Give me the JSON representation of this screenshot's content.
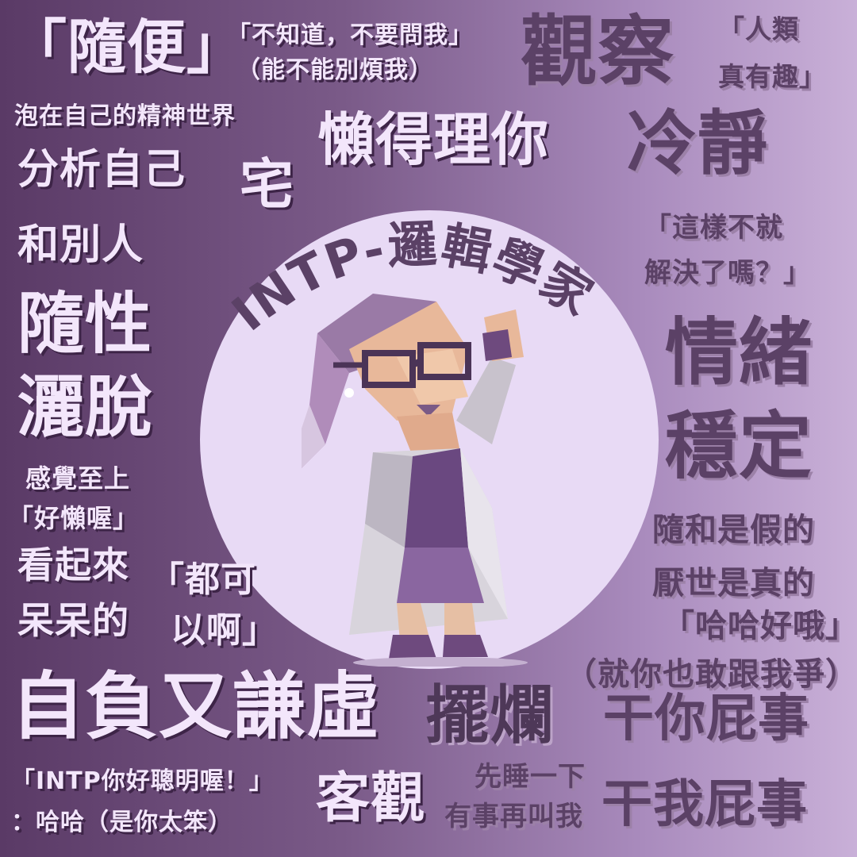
{
  "title": "INTP-邏輯學家",
  "texts": [
    {
      "id": "suibian",
      "text": "「隨便」"
    },
    {
      "id": "buzhidao",
      "text": "「不知道，不要問我」"
    },
    {
      "id": "nengbuneng",
      "text": "（能不能別煩我）"
    },
    {
      "id": "guancha",
      "text": "觀察"
    },
    {
      "id": "renlei",
      "text": "「人類"
    },
    {
      "id": "zhenyouqu",
      "text": "真有趣」"
    },
    {
      "id": "paozai",
      "text": "泡在自己的精神世界"
    },
    {
      "id": "landeli",
      "text": "懶得理你"
    },
    {
      "id": "lengjing",
      "text": "冷靜"
    },
    {
      "id": "fenxi",
      "text": "分析自己"
    },
    {
      "id": "zhai",
      "text": "宅"
    },
    {
      "id": "heber",
      "text": "和別人"
    },
    {
      "id": "zheyang",
      "text": "「這樣不就"
    },
    {
      "id": "jiejue",
      "text": "解決了嗎？」"
    },
    {
      "id": "suixing",
      "text": "隨性"
    },
    {
      "id": "satuo",
      "text": "灑脫"
    },
    {
      "id": "qingxu",
      "text": "情緒"
    },
    {
      "id": "wending",
      "text": "穩定"
    },
    {
      "id": "ganjue",
      "text": "感覺至上"
    },
    {
      "id": "haolan",
      "text": "「好懶喔」"
    },
    {
      "id": "suihe",
      "text": "隨和是假的"
    },
    {
      "id": "kanqilai",
      "text": "看起來"
    },
    {
      "id": "douke",
      "text": "「都可"
    },
    {
      "id": "yanshi",
      "text": "厭世是真的"
    },
    {
      "id": "daidai",
      "text": "呆呆的"
    },
    {
      "id": "yia",
      "text": "以啊」"
    },
    {
      "id": "haha",
      "text": "「哈哈好哦」"
    },
    {
      "id": "jiuni",
      "text": "（就你也敢跟我爭）"
    },
    {
      "id": "zifu",
      "text": "自負又謙虛"
    },
    {
      "id": "bailan",
      "text": "擺爛"
    },
    {
      "id": "ganni",
      "text": "干你屁事"
    },
    {
      "id": "intpni",
      "text": "「INTP你好聰明喔！」"
    },
    {
      "id": "hahashi",
      "text": "：哈哈（是你太笨）"
    },
    {
      "id": "keguan",
      "text": "客觀"
    },
    {
      "id": "xianshui",
      "text": "先睡一下"
    },
    {
      "id": "youshi",
      "text": "有事再叫我"
    },
    {
      "id": "ganwo",
      "text": "干我屁事"
    }
  ],
  "colors": {
    "light_text": "#f3e6fb",
    "dark_text": "#5b4166",
    "circle": "#e8daf5",
    "title": "#5b4166"
  },
  "illustration": "low-poly-intp-scientist-character"
}
